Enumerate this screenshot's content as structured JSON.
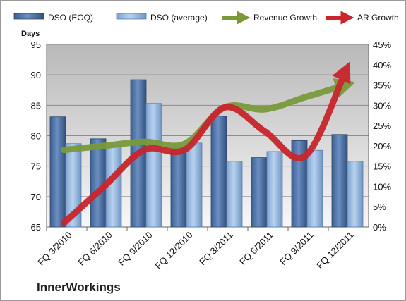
{
  "chart_data": {
    "type": "bar",
    "brand": "InnerWorkings",
    "ylabel_left": "Days",
    "categories": [
      "FQ 3/2010",
      "FQ 6/2010",
      "FQ 9/2010",
      "FQ 12/2010",
      "FQ 3/2011",
      "FQ 6/2011",
      "FQ 9/2011",
      "FQ 12/2011"
    ],
    "ylim_left": [
      65,
      95
    ],
    "yticks_left": [
      65,
      70,
      75,
      80,
      85,
      90,
      95
    ],
    "ylim_right": [
      0,
      45
    ],
    "yticks_right": [
      "0%",
      "5%",
      "10%",
      "15%",
      "20%",
      "25%",
      "30%",
      "35%",
      "40%",
      "45%"
    ],
    "series": [
      {
        "name": "DSO (EOQ)",
        "type": "bar",
        "axis": "left",
        "color": "#4a6fa5",
        "values": [
          83.1,
          79.5,
          89.2,
          78.0,
          83.2,
          76.4,
          79.2,
          80.2
        ]
      },
      {
        "name": "DSO (average)",
        "type": "bar",
        "axis": "left",
        "color": "#8fb3de",
        "values": [
          78.7,
          78.5,
          85.3,
          78.8,
          75.8,
          77.4,
          77.6,
          75.8
        ]
      },
      {
        "name": "Revenue Growth",
        "type": "line",
        "axis": "right",
        "color": "#7a9a3a",
        "values": [
          19,
          20,
          21,
          20.5,
          29.5,
          29,
          32,
          35
        ]
      },
      {
        "name": "AR Growth",
        "type": "line",
        "axis": "right",
        "color": "#c9252c",
        "values": [
          1,
          10,
          19,
          19,
          29.5,
          23.5,
          17.5,
          38.5
        ]
      }
    ],
    "grid": true,
    "legend": "top"
  }
}
